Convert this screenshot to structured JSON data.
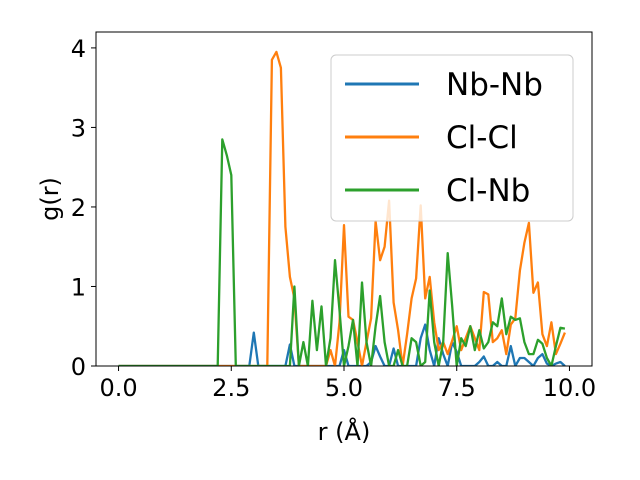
{
  "chart_data": {
    "type": "line",
    "title": "",
    "xlabel": "r (Å)",
    "ylabel": "g(r)",
    "xlim": [
      -0.5,
      10.5
    ],
    "ylim": [
      0,
      4.2
    ],
    "xticks": [
      0.0,
      2.5,
      5.0,
      7.5,
      10.0
    ],
    "xtick_labels": [
      "0.0",
      "2.5",
      "5.0",
      "7.5",
      "10.0"
    ],
    "yticks": [
      0,
      1,
      2,
      3,
      4
    ],
    "ytick_labels": [
      "0",
      "1",
      "2",
      "3",
      "4"
    ],
    "grid": false,
    "legend_position": "top-right",
    "series": [
      {
        "name": "Nb-Nb",
        "color": "#1f77b4",
        "x": [
          0.0,
          2.8,
          2.9,
          3.0,
          3.1,
          3.2,
          3.7,
          3.8,
          3.9,
          4.0,
          4.9,
          5.0,
          5.1,
          5.2,
          5.3,
          5.4,
          5.5,
          5.6,
          5.7,
          5.8,
          5.9,
          6.0,
          6.1,
          6.2,
          6.5,
          6.6,
          6.7,
          6.8,
          6.9,
          7.0,
          7.1,
          7.2,
          7.3,
          7.4,
          7.5,
          7.6,
          7.7,
          7.9,
          8.0,
          8.1,
          8.2,
          8.3,
          8.4,
          8.5,
          8.6,
          8.7,
          8.8,
          8.9,
          9.0,
          9.1,
          9.2,
          9.3,
          9.4,
          9.5,
          9.6,
          9.7,
          9.8,
          9.9
        ],
        "y": [
          0,
          0,
          0,
          0.42,
          0,
          0,
          0,
          0.27,
          0,
          0,
          0,
          0.2,
          0,
          0,
          0,
          0,
          0,
          0.05,
          0.25,
          0.12,
          0,
          0,
          0.22,
          0,
          0,
          0,
          0.35,
          0.52,
          0.2,
          0,
          0.35,
          0.15,
          0,
          0.3,
          0.18,
          0,
          0,
          0,
          0.05,
          0.12,
          0,
          0,
          0.05,
          0,
          0,
          0.25,
          0,
          0.1,
          0.1,
          0.05,
          0,
          0.1,
          0.15,
          0.03,
          0,
          0.03,
          0.05,
          0
        ]
      },
      {
        "name": "Cl-Cl",
        "color": "#ff7f0e",
        "x": [
          0.0,
          3.2,
          3.3,
          3.4,
          3.5,
          3.6,
          3.7,
          3.8,
          3.9,
          4.0,
          4.5,
          4.6,
          4.7,
          4.8,
          4.9,
          5.0,
          5.1,
          5.2,
          5.3,
          5.4,
          5.5,
          5.6,
          5.7,
          5.8,
          5.9,
          6.0,
          6.1,
          6.2,
          6.3,
          6.4,
          6.5,
          6.6,
          6.7,
          6.8,
          6.9,
          7.0,
          7.1,
          7.2,
          7.3,
          7.4,
          7.5,
          7.6,
          7.7,
          7.8,
          7.9,
          8.0,
          8.1,
          8.2,
          8.3,
          8.4,
          8.5,
          8.6,
          8.7,
          8.8,
          8.9,
          9.0,
          9.1,
          9.2,
          9.3,
          9.4,
          9.5,
          9.6,
          9.7,
          9.8,
          9.9
        ],
        "y": [
          0,
          0,
          0,
          3.85,
          3.95,
          3.75,
          1.75,
          1.12,
          0.85,
          0,
          0,
          0,
          0.2,
          0,
          0.55,
          1.77,
          0.62,
          0.58,
          0.3,
          0,
          0.3,
          0.6,
          1.82,
          1.33,
          1.5,
          2.08,
          0.8,
          0.45,
          0,
          0.4,
          0.85,
          1.1,
          2.02,
          0.85,
          1.12,
          0.55,
          0.2,
          0.3,
          0.15,
          0.32,
          0.5,
          0.2,
          0.35,
          0.5,
          0.35,
          0.2,
          0.93,
          0.9,
          0.3,
          0.35,
          0.45,
          0.15,
          0.52,
          0.6,
          1.2,
          1.55,
          1.8,
          0.92,
          1.05,
          0.4,
          0.25,
          0.55,
          0.15,
          0.28,
          0.42
        ]
      },
      {
        "name": "Cl-Nb",
        "color": "#2ca02c",
        "x": [
          0.0,
          2.2,
          2.3,
          2.4,
          2.5,
          2.6,
          3.8,
          3.9,
          4.0,
          4.1,
          4.2,
          4.3,
          4.4,
          4.5,
          4.6,
          4.7,
          4.8,
          4.9,
          5.0,
          5.1,
          5.2,
          5.3,
          5.4,
          5.5,
          5.6,
          5.7,
          5.8,
          5.9,
          6.0,
          6.1,
          6.2,
          6.3,
          6.4,
          6.5,
          6.6,
          6.7,
          6.8,
          6.9,
          7.0,
          7.1,
          7.2,
          7.3,
          7.4,
          7.5,
          7.6,
          7.7,
          7.8,
          7.9,
          8.0,
          8.1,
          8.2,
          8.3,
          8.4,
          8.5,
          8.6,
          8.7,
          8.8,
          8.9,
          9.0,
          9.1,
          9.2,
          9.3,
          9.4,
          9.5,
          9.6,
          9.7,
          9.8,
          9.9
        ],
        "y": [
          0,
          0,
          2.85,
          2.65,
          2.4,
          0,
          0,
          1.0,
          0,
          0.3,
          0,
          0.82,
          0.2,
          0.75,
          0,
          0.35,
          1.33,
          0.7,
          0,
          0.25,
          0.58,
          0,
          1.05,
          0.3,
          0,
          0.5,
          0.88,
          0.3,
          0,
          0,
          0.2,
          0,
          0,
          0.35,
          0.3,
          0,
          0.05,
          0.95,
          0.3,
          0,
          0.3,
          1.42,
          0.75,
          0,
          0.35,
          0.25,
          0.5,
          0.2,
          0.45,
          0.22,
          0.3,
          0.55,
          0.5,
          0.85,
          0.4,
          0.62,
          0.58,
          0.6,
          0.3,
          0.15,
          0.15,
          0.33,
          0.28,
          0.1,
          0,
          0.25,
          0.48,
          0.47
        ]
      }
    ]
  }
}
